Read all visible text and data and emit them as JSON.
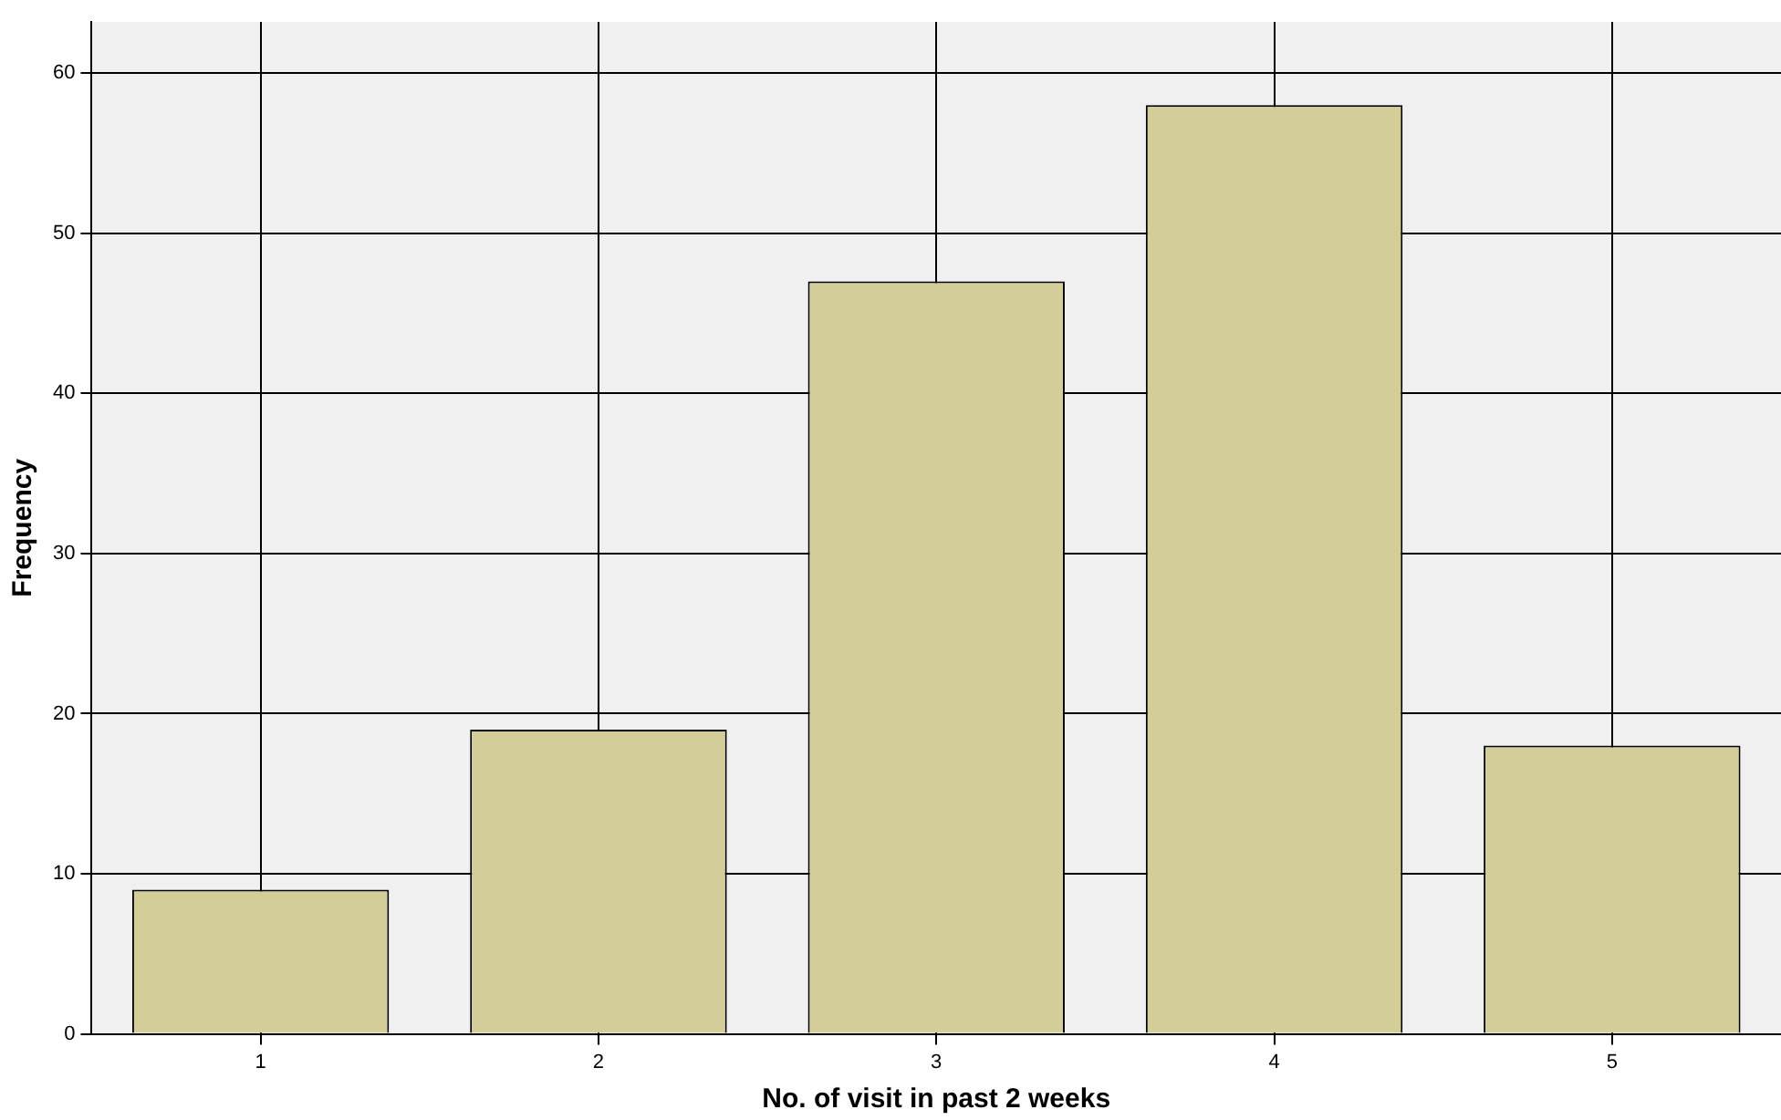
{
  "chart_data": {
    "type": "bar",
    "xlabel": "No. of visit in past 2 weeks",
    "ylabel": "Frequency",
    "categories": [
      "1",
      "2",
      "3",
      "4",
      "5"
    ],
    "values": [
      9,
      19,
      47,
      58,
      18
    ],
    "color": "#d3ce97",
    "ylim": [
      0,
      63.2
    ],
    "yticks": [
      0,
      10,
      20,
      30,
      40,
      50,
      60
    ],
    "grid": true
  }
}
